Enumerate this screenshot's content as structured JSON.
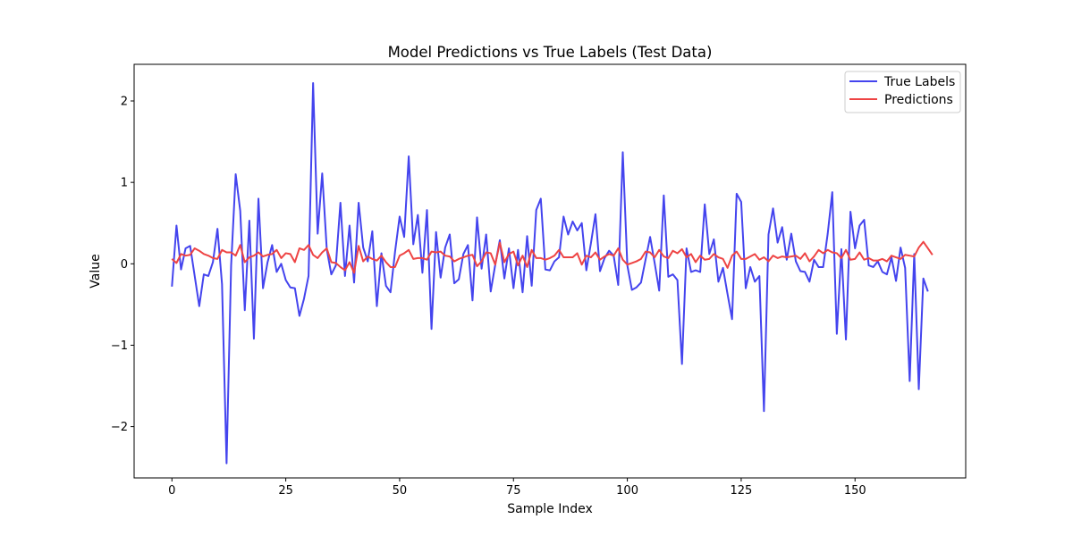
{
  "chart_data": {
    "type": "line",
    "title": "Model Predictions vs True Labels (Test Data)",
    "xlabel": "Sample Index",
    "ylabel": "Value",
    "xlim": [
      -8.3,
      174.3
    ],
    "ylim": [
      -2.63,
      2.45
    ],
    "xticks": [
      0,
      25,
      50,
      75,
      100,
      125,
      150
    ],
    "yticks": [
      -2,
      -1,
      0,
      1,
      2
    ],
    "xtick_labels": [
      "0",
      "25",
      "50",
      "75",
      "100",
      "125",
      "150"
    ],
    "ytick_labels": [
      "−2",
      "−1",
      "0",
      "1",
      "2"
    ],
    "grid": false,
    "legend_position": "top-right",
    "series": [
      {
        "name": "True Labels",
        "color": "#4444ee",
        "values": [
          -0.28,
          0.47,
          -0.07,
          0.19,
          0.22,
          -0.15,
          -0.52,
          -0.13,
          -0.15,
          0.02,
          0.43,
          -0.25,
          -2.45,
          -0.02,
          1.1,
          0.65,
          -0.57,
          0.53,
          -0.92,
          0.8,
          -0.3,
          0.02,
          0.23,
          -0.1,
          0.0,
          -0.2,
          -0.29,
          -0.3,
          -0.64,
          -0.43,
          -0.15,
          2.22,
          0.37,
          1.11,
          0.18,
          -0.13,
          -0.02,
          0.75,
          -0.15,
          0.47,
          -0.23,
          0.75,
          0.2,
          0.03,
          0.4,
          -0.52,
          0.13,
          -0.27,
          -0.35,
          0.15,
          0.58,
          0.33,
          1.32,
          0.24,
          0.6,
          -0.11,
          0.66,
          -0.8,
          0.39,
          -0.17,
          0.2,
          0.36,
          -0.24,
          -0.19,
          0.12,
          0.23,
          -0.45,
          0.57,
          -0.06,
          0.36,
          -0.34,
          -0.01,
          0.29,
          -0.18,
          0.19,
          -0.3,
          0.17,
          -0.35,
          0.34,
          -0.27,
          0.66,
          0.8,
          -0.07,
          -0.08,
          0.03,
          0.08,
          0.58,
          0.36,
          0.52,
          0.41,
          0.5,
          -0.08,
          0.25,
          0.61,
          -0.09,
          0.07,
          0.16,
          0.1,
          -0.26,
          1.37,
          -0.02,
          -0.32,
          -0.29,
          -0.23,
          0.05,
          0.33,
          0.01,
          -0.33,
          0.84,
          -0.16,
          -0.13,
          -0.2,
          -1.23,
          0.19,
          -0.1,
          -0.08,
          -0.1,
          0.73,
          0.12,
          0.3,
          -0.22,
          -0.05,
          -0.37,
          -0.68,
          0.86,
          0.76,
          -0.3,
          -0.04,
          -0.22,
          -0.15,
          -1.81,
          0.36,
          0.68,
          0.26,
          0.45,
          0.05,
          0.37,
          0.03,
          -0.09,
          -0.1,
          -0.22,
          0.05,
          -0.04,
          -0.04,
          0.37,
          0.88,
          -0.86,
          0.18,
          -0.93,
          0.64,
          0.19,
          0.47,
          0.54,
          -0.02,
          -0.04,
          0.03,
          -0.1,
          -0.13,
          0.08,
          -0.21,
          0.2,
          -0.05,
          -1.44,
          0.12,
          -1.54,
          -0.18,
          -0.34
        ]
      },
      {
        "name": "Predictions",
        "color": "#ee4444",
        "values": [
          0.06,
          0.01,
          0.12,
          0.1,
          0.11,
          0.19,
          0.16,
          0.12,
          0.1,
          0.07,
          0.06,
          0.17,
          0.14,
          0.14,
          0.1,
          0.23,
          0.02,
          0.08,
          0.1,
          0.14,
          0.09,
          0.11,
          0.12,
          0.17,
          0.07,
          0.13,
          0.12,
          0.02,
          0.19,
          0.17,
          0.23,
          0.11,
          0.07,
          0.14,
          0.19,
          0.02,
          0.01,
          -0.04,
          -0.08,
          0.02,
          -0.11,
          0.22,
          0.03,
          0.09,
          0.06,
          0.04,
          0.1,
          0.02,
          -0.04,
          -0.04,
          0.1,
          0.13,
          0.17,
          0.06,
          0.07,
          0.07,
          0.05,
          0.15,
          0.14,
          0.15,
          0.1,
          0.09,
          0.03,
          0.06,
          0.08,
          0.1,
          0.11,
          -0.03,
          0.03,
          0.14,
          0.13,
          -0.01,
          0.26,
          0.02,
          0.12,
          0.15,
          -0.02,
          0.1,
          -0.04,
          0.17,
          0.07,
          0.07,
          0.05,
          0.07,
          0.1,
          0.17,
          0.08,
          0.08,
          0.08,
          0.13,
          -0.01,
          0.1,
          0.08,
          0.14,
          0.05,
          0.09,
          0.12,
          0.1,
          0.19,
          0.05,
          -0.01,
          0.01,
          0.03,
          0.06,
          0.15,
          0.14,
          0.08,
          0.17,
          0.09,
          0.07,
          0.16,
          0.13,
          0.18,
          0.08,
          0.12,
          0.02,
          0.1,
          0.05,
          0.06,
          0.12,
          0.08,
          0.06,
          -0.05,
          0.1,
          0.15,
          0.06,
          0.06,
          0.09,
          0.12,
          0.05,
          0.08,
          0.03,
          0.1,
          0.07,
          0.09,
          0.08,
          0.09,
          0.1,
          0.06,
          0.13,
          0.03,
          0.09,
          0.17,
          0.13,
          0.17,
          0.14,
          0.13,
          0.07,
          0.17,
          0.05,
          0.06,
          0.14,
          0.05,
          0.07,
          0.04,
          0.04,
          0.06,
          0.03,
          0.1,
          0.08,
          0.06,
          0.11,
          0.1,
          0.09,
          0.2,
          0.27,
          0.19,
          0.11
        ]
      }
    ]
  }
}
